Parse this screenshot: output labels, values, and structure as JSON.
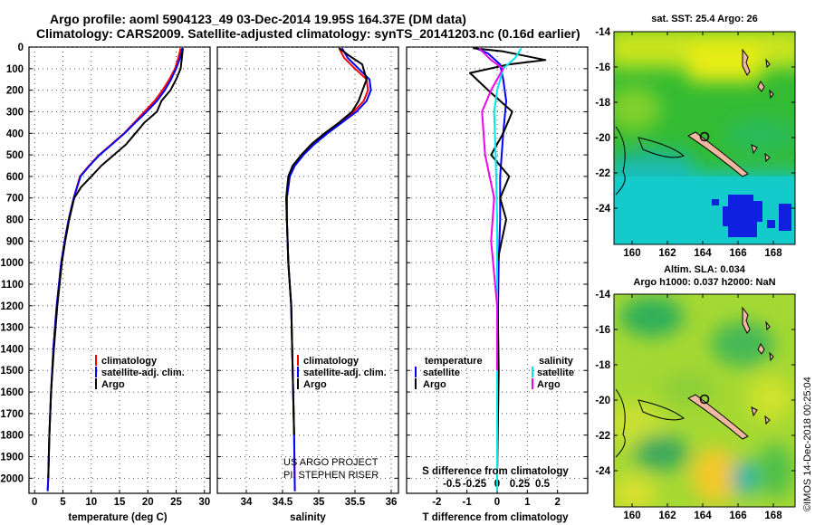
{
  "header": {
    "line1": "Argo profile: aoml 5904123_49 03-Dec-2014 19.95S 164.37E (DM data)",
    "line2": "Climatology: CARS2009. Satellite-adjusted climatology: synTS_20141203.nc (0.16d earlier)"
  },
  "watermark": "©IMOS 14-Dec-2018 00:25:04",
  "credit": {
    "line1": "US ARGO PROJECT",
    "line2": "PI: STEPHEN RISER"
  },
  "colors": {
    "climatology": "#ff0000",
    "satellite": "#0000ff",
    "argo": "#000000",
    "sat_salinity": "#00e5ee",
    "argo_salinity": "#ee00ee"
  },
  "chart_data": [
    {
      "type": "line",
      "title": "",
      "xlabel": "temperature (deg C)",
      "ylabel": "",
      "xlim": [
        -1,
        31
      ],
      "ylim": [
        2070,
        0
      ],
      "xticks": [
        "0",
        "5",
        "10",
        "15",
        "20",
        "25",
        "30"
      ],
      "yticks": [
        "0",
        "100",
        "200",
        "300",
        "400",
        "500",
        "600",
        "700",
        "800",
        "900",
        "1000",
        "1100",
        "1200",
        "1300",
        "1400",
        "1500",
        "1600",
        "1700",
        "1800",
        "1900",
        "2000"
      ],
      "legend": [
        "climatology",
        "satellite-adj. clim.",
        "Argo"
      ],
      "series": [
        {
          "name": "climatology",
          "color": "#ff0000",
          "x": [
            25.8,
            25.4,
            24.8,
            23.8,
            22.6,
            21.2,
            19.4,
            17.6,
            15.8,
            13.6,
            11.4,
            9.6,
            8.0,
            6.9,
            6.0,
            5.3,
            4.7,
            3.9,
            3.3,
            2.9,
            2.6,
            2.4,
            2.3
          ],
          "y": [
            5,
            50,
            100,
            150,
            200,
            250,
            300,
            350,
            400,
            450,
            500,
            550,
            600,
            700,
            800,
            900,
            1000,
            1200,
            1400,
            1600,
            1800,
            2000,
            2060
          ]
        },
        {
          "name": "satellite-adj. clim.",
          "color": "#0000ff",
          "x": [
            26.1,
            25.7,
            25.0,
            24.1,
            23.0,
            21.6,
            19.8,
            17.8,
            15.9,
            13.7,
            11.5,
            9.7,
            8.1,
            6.9,
            6.0,
            5.3,
            4.7,
            3.9,
            3.3,
            2.9,
            2.6,
            2.4,
            2.3
          ],
          "y": [
            5,
            50,
            100,
            150,
            200,
            250,
            300,
            350,
            400,
            450,
            500,
            550,
            600,
            700,
            800,
            900,
            1000,
            1200,
            1400,
            1600,
            1800,
            2000,
            2060
          ]
        },
        {
          "name": "Argo",
          "color": "#000000",
          "x": [
            26.2,
            26.0,
            25.8,
            25.0,
            24.0,
            22.4,
            21.6,
            19.4,
            17.8,
            16.2,
            14.0,
            11.8,
            10.0,
            8.2,
            7.0,
            6.1,
            5.4,
            4.8,
            4.0,
            3.4,
            2.9,
            2.6,
            2.4
          ],
          "y": [
            5,
            50,
            100,
            150,
            200,
            250,
            300,
            350,
            400,
            450,
            500,
            550,
            600,
            650,
            700,
            800,
            900,
            1000,
            1200,
            1400,
            1600,
            1800,
            2000
          ]
        }
      ]
    },
    {
      "type": "line",
      "xlabel": "salinity",
      "xlim": [
        33.6,
        36.1
      ],
      "xticks": [
        "34",
        "34.5",
        "35",
        "35.5",
        "36"
      ],
      "legend": [
        "climatology",
        "satellite-adj. clim.",
        "Argo"
      ],
      "series": [
        {
          "name": "climatology",
          "color": "#ff0000",
          "x": [
            35.28,
            35.35,
            35.5,
            35.66,
            35.68,
            35.62,
            35.48,
            35.3,
            35.1,
            34.92,
            34.78,
            34.66,
            34.6,
            34.56,
            34.56,
            34.58,
            34.62,
            34.64,
            34.66,
            34.67
          ],
          "y": [
            5,
            50,
            100,
            150,
            200,
            250,
            300,
            350,
            400,
            450,
            500,
            550,
            600,
            700,
            800,
            1000,
            1200,
            1500,
            1800,
            2060
          ]
        },
        {
          "name": "satellite-adj. clim.",
          "color": "#0000ff",
          "x": [
            35.32,
            35.4,
            35.55,
            35.7,
            35.72,
            35.66,
            35.52,
            35.32,
            35.12,
            34.94,
            34.79,
            34.67,
            34.6,
            34.56,
            34.56,
            34.58,
            34.62,
            34.64,
            34.66,
            34.67
          ],
          "y": [
            5,
            50,
            100,
            150,
            200,
            250,
            300,
            350,
            400,
            450,
            500,
            550,
            600,
            700,
            800,
            1000,
            1200,
            1500,
            1800,
            2060
          ]
        },
        {
          "name": "Argo",
          "color": "#000000",
          "x": [
            35.28,
            35.42,
            35.6,
            35.66,
            35.55,
            35.46,
            35.28,
            35.08,
            34.9,
            34.76,
            34.64,
            34.58,
            34.55,
            34.56,
            34.58,
            34.62,
            34.64,
            34.66
          ],
          "y": [
            5,
            40,
            80,
            150,
            250,
            300,
            350,
            400,
            450,
            500,
            550,
            600,
            700,
            800,
            1000,
            1200,
            1500,
            1800
          ]
        }
      ]
    },
    {
      "type": "line",
      "xlabel": "T difference from climatology",
      "xlabel2": "S difference from climatology",
      "xlim": [
        -3,
        3
      ],
      "xticks": [
        "-2",
        "-1",
        "0",
        "1",
        "2"
      ],
      "xticks2": [
        "-0.5",
        "-0.25",
        "0",
        "0.25",
        "0.5"
      ],
      "legend_left_title": "temperature",
      "legend_right_title": "salinity",
      "legend_left": [
        "satellite",
        "Argo"
      ],
      "legend_right": [
        "satellite",
        "Argo"
      ],
      "series": [
        {
          "name": "T satellite",
          "color": "#0000ff",
          "x": [
            -0.7,
            -0.3,
            0.1,
            0.2,
            0.3,
            0.2,
            0.1,
            0.1,
            0.05,
            0,
            0
          ],
          "y": [
            5,
            30,
            80,
            150,
            250,
            400,
            600,
            800,
            1000,
            1500,
            2060
          ]
        },
        {
          "name": "T Argo",
          "color": "#000000",
          "x": [
            -0.8,
            0.2,
            1.6,
            0.4,
            -0.9,
            -0.3,
            0.5,
            0.2,
            -0.2,
            0.4,
            0.1,
            0.3,
            0,
            0.05,
            0
          ],
          "y": [
            5,
            20,
            60,
            80,
            120,
            200,
            300,
            400,
            500,
            600,
            700,
            800,
            1000,
            1500,
            2000
          ]
        },
        {
          "name": "S satellite",
          "color": "#00e5ee",
          "x": [
            0.8,
            0.6,
            0.2,
            0,
            -0.1,
            -0.05,
            0,
            0,
            0,
            0
          ],
          "y": [
            5,
            50,
            100,
            200,
            300,
            500,
            800,
            1200,
            1600,
            2060
          ]
        },
        {
          "name": "S Argo",
          "color": "#ee00ee",
          "x": [
            -0.6,
            -0.2,
            0.2,
            -0.2,
            -0.5,
            -0.4,
            -0.1,
            -0.2,
            0,
            0
          ],
          "y": [
            5,
            60,
            100,
            200,
            300,
            500,
            700,
            900,
            1200,
            1500
          ]
        }
      ]
    },
    {
      "type": "heatmap",
      "title": "sat. SST: 25.4 Argo: 26",
      "xticks": [
        "160",
        "162",
        "164",
        "166",
        "168"
      ],
      "yticks": [
        "-14",
        "-16",
        "-18",
        "-20",
        "-22",
        "-24"
      ]
    },
    {
      "type": "heatmap",
      "title": "Altim. SLA: 0.034",
      "subtitle": "Argo h1000: 0.037 h2000: NaN",
      "xticks": [
        "160",
        "162",
        "164",
        "166",
        "168"
      ],
      "yticks": [
        "-14",
        "-16",
        "-18",
        "-20",
        "-22",
        "-24"
      ]
    }
  ]
}
